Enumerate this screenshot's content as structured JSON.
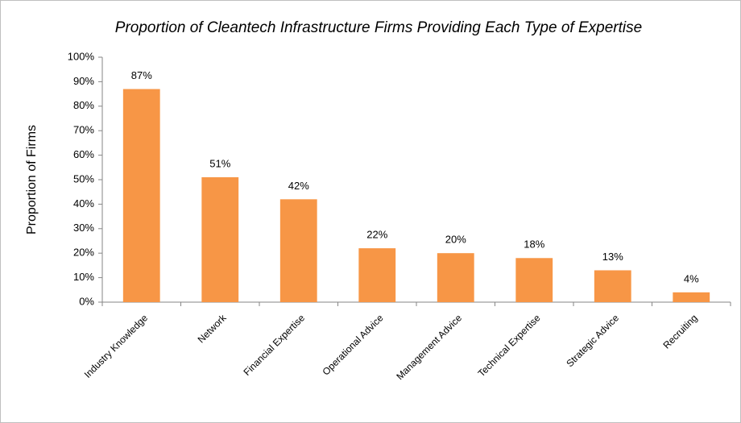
{
  "chart_data": {
    "type": "bar",
    "title": "Proportion of Cleantech Infrastructure Firms Providing Each Type of Expertise",
    "y_label": "Proportion of Firms",
    "categories": [
      "Industry Knowledge",
      "Network",
      "Financial Expertise",
      "Operational Advice",
      "Management Advice",
      "Technical Expertise",
      "Strategic Advice",
      "Recruiting"
    ],
    "values": [
      87,
      51,
      42,
      22,
      20,
      18,
      13,
      4
    ],
    "value_labels": [
      "87%",
      "51%",
      "42%",
      "22%",
      "20%",
      "18%",
      "13%",
      "4%"
    ],
    "color": "#f79646",
    "ylim": [
      0,
      100
    ],
    "yticks": [
      {
        "value": 0,
        "label": "0%"
      },
      {
        "value": 10,
        "label": "10%"
      },
      {
        "value": 20,
        "label": "20%"
      },
      {
        "value": 30,
        "label": "30%"
      },
      {
        "value": 40,
        "label": "40%"
      },
      {
        "value": 50,
        "label": "50%"
      },
      {
        "value": 60,
        "label": "60%"
      },
      {
        "value": 70,
        "label": "70%"
      },
      {
        "value": 80,
        "label": "80%"
      },
      {
        "value": 90,
        "label": "90%"
      },
      {
        "value": 100,
        "label": "100%"
      }
    ],
    "grid": false
  }
}
